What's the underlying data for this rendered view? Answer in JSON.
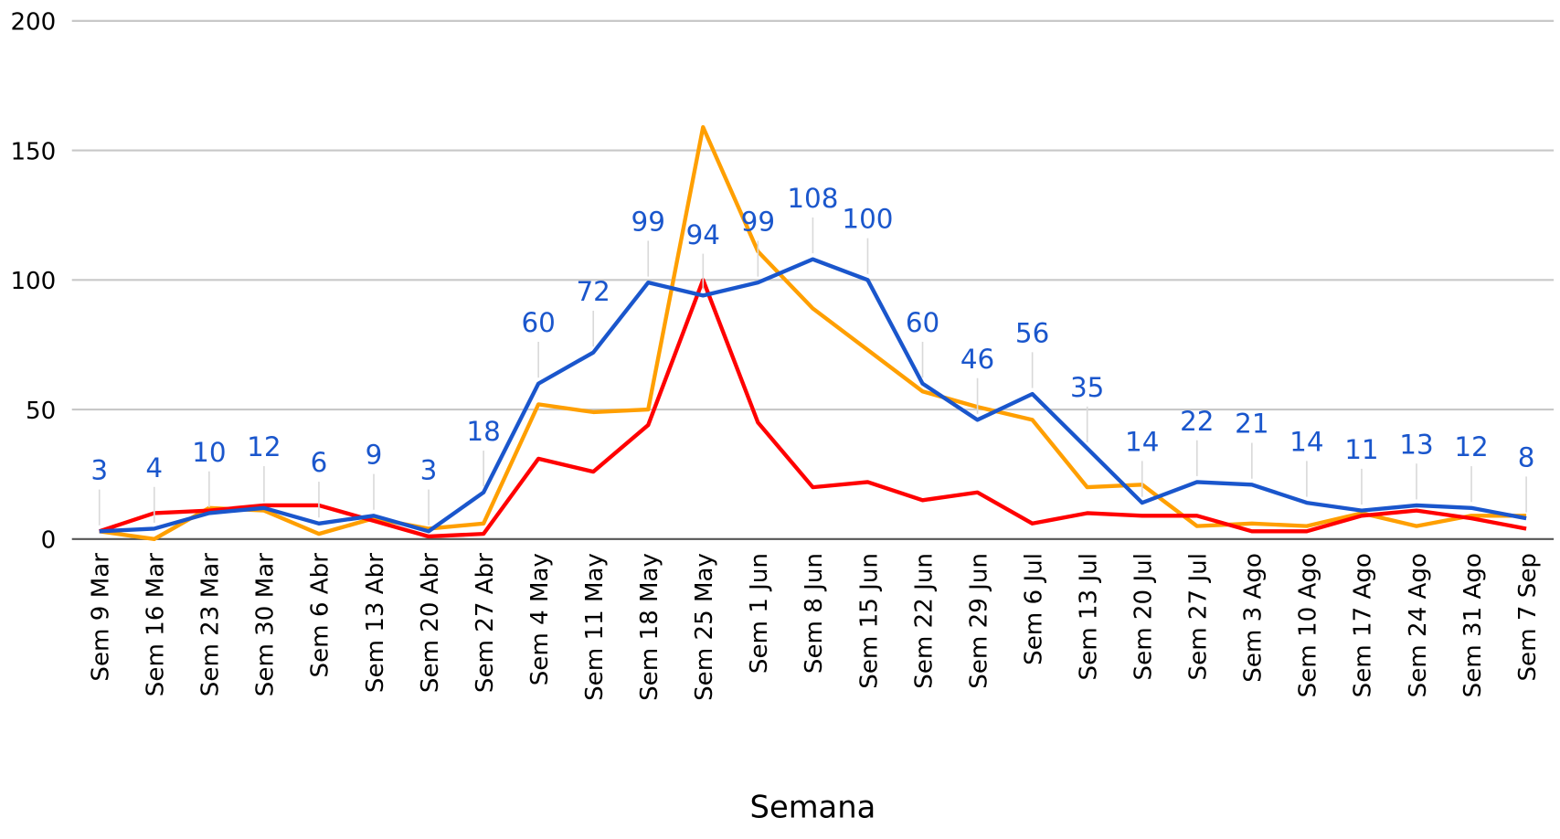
{
  "chart_data": {
    "type": "line",
    "x_label": "Semana",
    "categories": [
      "Sem 9 Mar",
      "Sem 16 Mar",
      "Sem 23 Mar",
      "Sem 30 Mar",
      "Sem 6 Abr",
      "Sem 13 Abr",
      "Sem 20 Abr",
      "Sem 27 Abr",
      "Sem 4 May",
      "Sem 11 May",
      "Sem 18 May",
      "Sem 25 May",
      "Sem 1 Jun",
      "Sem 8 Jun",
      "Sem 15 Jun",
      "Sem 22 Jun",
      "Sem 29 Jun",
      "Sem 6 Jul",
      "Sem 13 Jul",
      "Sem 20 Jul",
      "Sem 27 Jul",
      "Sem 3 Ago",
      "Sem 10 Ago",
      "Sem 17 Ago",
      "Sem 24 Ago",
      "Sem 31 Ago",
      "Sem 7 Sep"
    ],
    "series": [
      {
        "color": "#ff9f00",
        "data_labels": false,
        "values": [
          3,
          0,
          12,
          11,
          2,
          8,
          4,
          6,
          52,
          49,
          50,
          159,
          111,
          89,
          73,
          57,
          51,
          46,
          20,
          21,
          5,
          6,
          5,
          10,
          5,
          9,
          9
        ]
      },
      {
        "color": "#ff0000",
        "data_labels": false,
        "values": [
          3,
          10,
          11,
          13,
          13,
          7,
          1,
          2,
          31,
          26,
          44,
          100,
          45,
          20,
          22,
          15,
          18,
          6,
          10,
          9,
          9,
          3,
          3,
          9,
          11,
          8,
          4
        ]
      },
      {
        "color": "#1a56cc",
        "data_labels": true,
        "values": [
          3,
          4,
          10,
          12,
          6,
          9,
          3,
          18,
          60,
          72,
          99,
          94,
          99,
          108,
          100,
          60,
          46,
          56,
          35,
          14,
          22,
          21,
          14,
          11,
          13,
          12,
          8
        ]
      }
    ],
    "ylim": [
      0,
      200
    ],
    "yticks": [
      0,
      50,
      100,
      150,
      200
    ],
    "grid": true
  }
}
